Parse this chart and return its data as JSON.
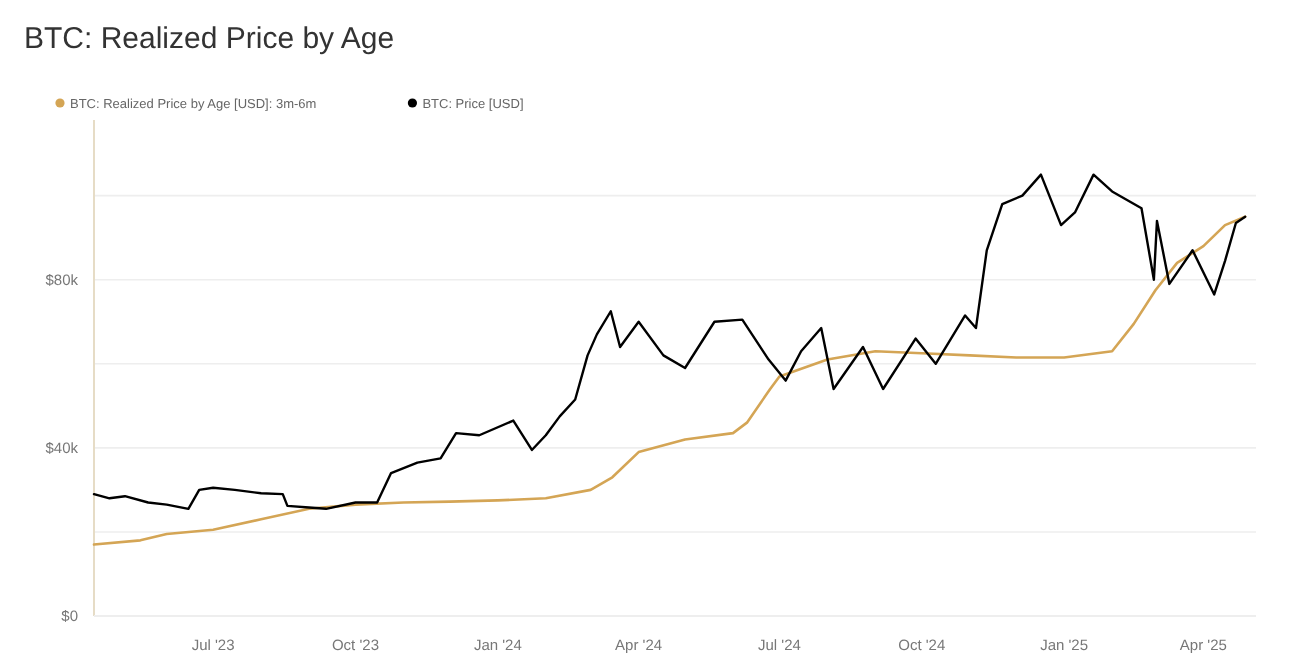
{
  "chart_data": {
    "type": "line",
    "title": "BTC: Realized Price by Age",
    "xlim": [
      "2023-04-15",
      "2025-05-05"
    ],
    "xticks": [
      {
        "value": "2023-07-01",
        "label": "Jul '23"
      },
      {
        "value": "2023-10-01",
        "label": "Oct '23"
      },
      {
        "value": "2024-01-01",
        "label": "Jan '24"
      },
      {
        "value": "2024-04-01",
        "label": "Apr '24"
      },
      {
        "value": "2024-07-01",
        "label": "Jul '24"
      },
      {
        "value": "2024-10-01",
        "label": "Oct '24"
      },
      {
        "value": "2025-01-01",
        "label": "Jan '25"
      },
      {
        "value": "2025-04-01",
        "label": "Apr '25"
      }
    ],
    "ylim": [
      0,
      118000
    ],
    "yticks": [
      {
        "value": 0,
        "label": "$0"
      },
      {
        "value": 20000,
        "label": null
      },
      {
        "value": 40000,
        "label": "$40k"
      },
      {
        "value": 60000,
        "label": null
      },
      {
        "value": 80000,
        "label": "$80k"
      },
      {
        "value": 100000,
        "label": null
      }
    ],
    "grid": "y",
    "legend": "top left",
    "marker": "none",
    "line_style": "solid",
    "series": [
      {
        "name": "BTC: Realized Price by Age [USD]: 3m-6m",
        "color": "#d4a555",
        "x": [
          "2023-04-15",
          "2023-05-15",
          "2023-06-01",
          "2023-07-01",
          "2023-08-01",
          "2023-09-01",
          "2023-10-01",
          "2023-11-01",
          "2023-12-01",
          "2024-01-01",
          "2024-02-01",
          "2024-03-01",
          "2024-03-15",
          "2024-04-01",
          "2024-05-01",
          "2024-06-01",
          "2024-06-10",
          "2024-06-25",
          "2024-07-01",
          "2024-08-01",
          "2024-09-01",
          "2024-10-01",
          "2024-11-01",
          "2024-12-01",
          "2025-01-01",
          "2025-02-01",
          "2025-02-15",
          "2025-03-01",
          "2025-03-15",
          "2025-04-01",
          "2025-04-15",
          "2025-04-28"
        ],
        "values": [
          17000,
          18000,
          19500,
          20500,
          23000,
          25500,
          26500,
          27000,
          27200,
          27500,
          28000,
          30000,
          33000,
          39000,
          42000,
          43500,
          46000,
          54000,
          57000,
          61000,
          63000,
          62500,
          62000,
          61500,
          61500,
          63000,
          69500,
          77500,
          84000,
          88000,
          93000,
          95000
        ]
      },
      {
        "name": "BTC: Price [USD]",
        "color": "#000000",
        "x": [
          "2023-04-15",
          "2023-04-25",
          "2023-05-05",
          "2023-05-20",
          "2023-06-01",
          "2023-06-15",
          "2023-06-22",
          "2023-07-01",
          "2023-07-15",
          "2023-08-01",
          "2023-08-15",
          "2023-08-18",
          "2023-09-01",
          "2023-09-12",
          "2023-10-01",
          "2023-10-15",
          "2023-10-24",
          "2023-11-10",
          "2023-11-25",
          "2023-12-05",
          "2023-12-20",
          "2024-01-11",
          "2024-01-23",
          "2024-02-01",
          "2024-02-10",
          "2024-02-20",
          "2024-02-28",
          "2024-03-05",
          "2024-03-14",
          "2024-03-20",
          "2024-04-01",
          "2024-04-17",
          "2024-05-01",
          "2024-05-20",
          "2024-06-07",
          "2024-06-24",
          "2024-07-05",
          "2024-07-15",
          "2024-07-28",
          "2024-08-05",
          "2024-08-24",
          "2024-09-06",
          "2024-09-27",
          "2024-10-10",
          "2024-10-29",
          "2024-11-05",
          "2024-11-12",
          "2024-11-22",
          "2024-12-05",
          "2024-12-17",
          "2024-12-30",
          "2025-01-08",
          "2025-01-20",
          "2025-02-01",
          "2025-02-20",
          "2025-02-28",
          "2025-03-02",
          "2025-03-10",
          "2025-03-25",
          "2025-04-08",
          "2025-04-15",
          "2025-04-22",
          "2025-04-28"
        ],
        "values": [
          29000,
          28000,
          28500,
          27000,
          26500,
          25500,
          30000,
          30500,
          30000,
          29200,
          29000,
          26200,
          25800,
          25500,
          27000,
          27000,
          34000,
          36500,
          37500,
          43500,
          43000,
          46500,
          39500,
          43000,
          47500,
          51500,
          62000,
          67000,
          72500,
          64000,
          70000,
          62000,
          59000,
          70000,
          70500,
          61000,
          56000,
          63000,
          68500,
          54000,
          64000,
          54000,
          66000,
          60000,
          71500,
          68500,
          87000,
          98000,
          100000,
          105000,
          93000,
          96000,
          105000,
          101000,
          97000,
          80000,
          94000,
          79000,
          87000,
          76500,
          84500,
          93500,
          95000
        ]
      }
    ]
  }
}
